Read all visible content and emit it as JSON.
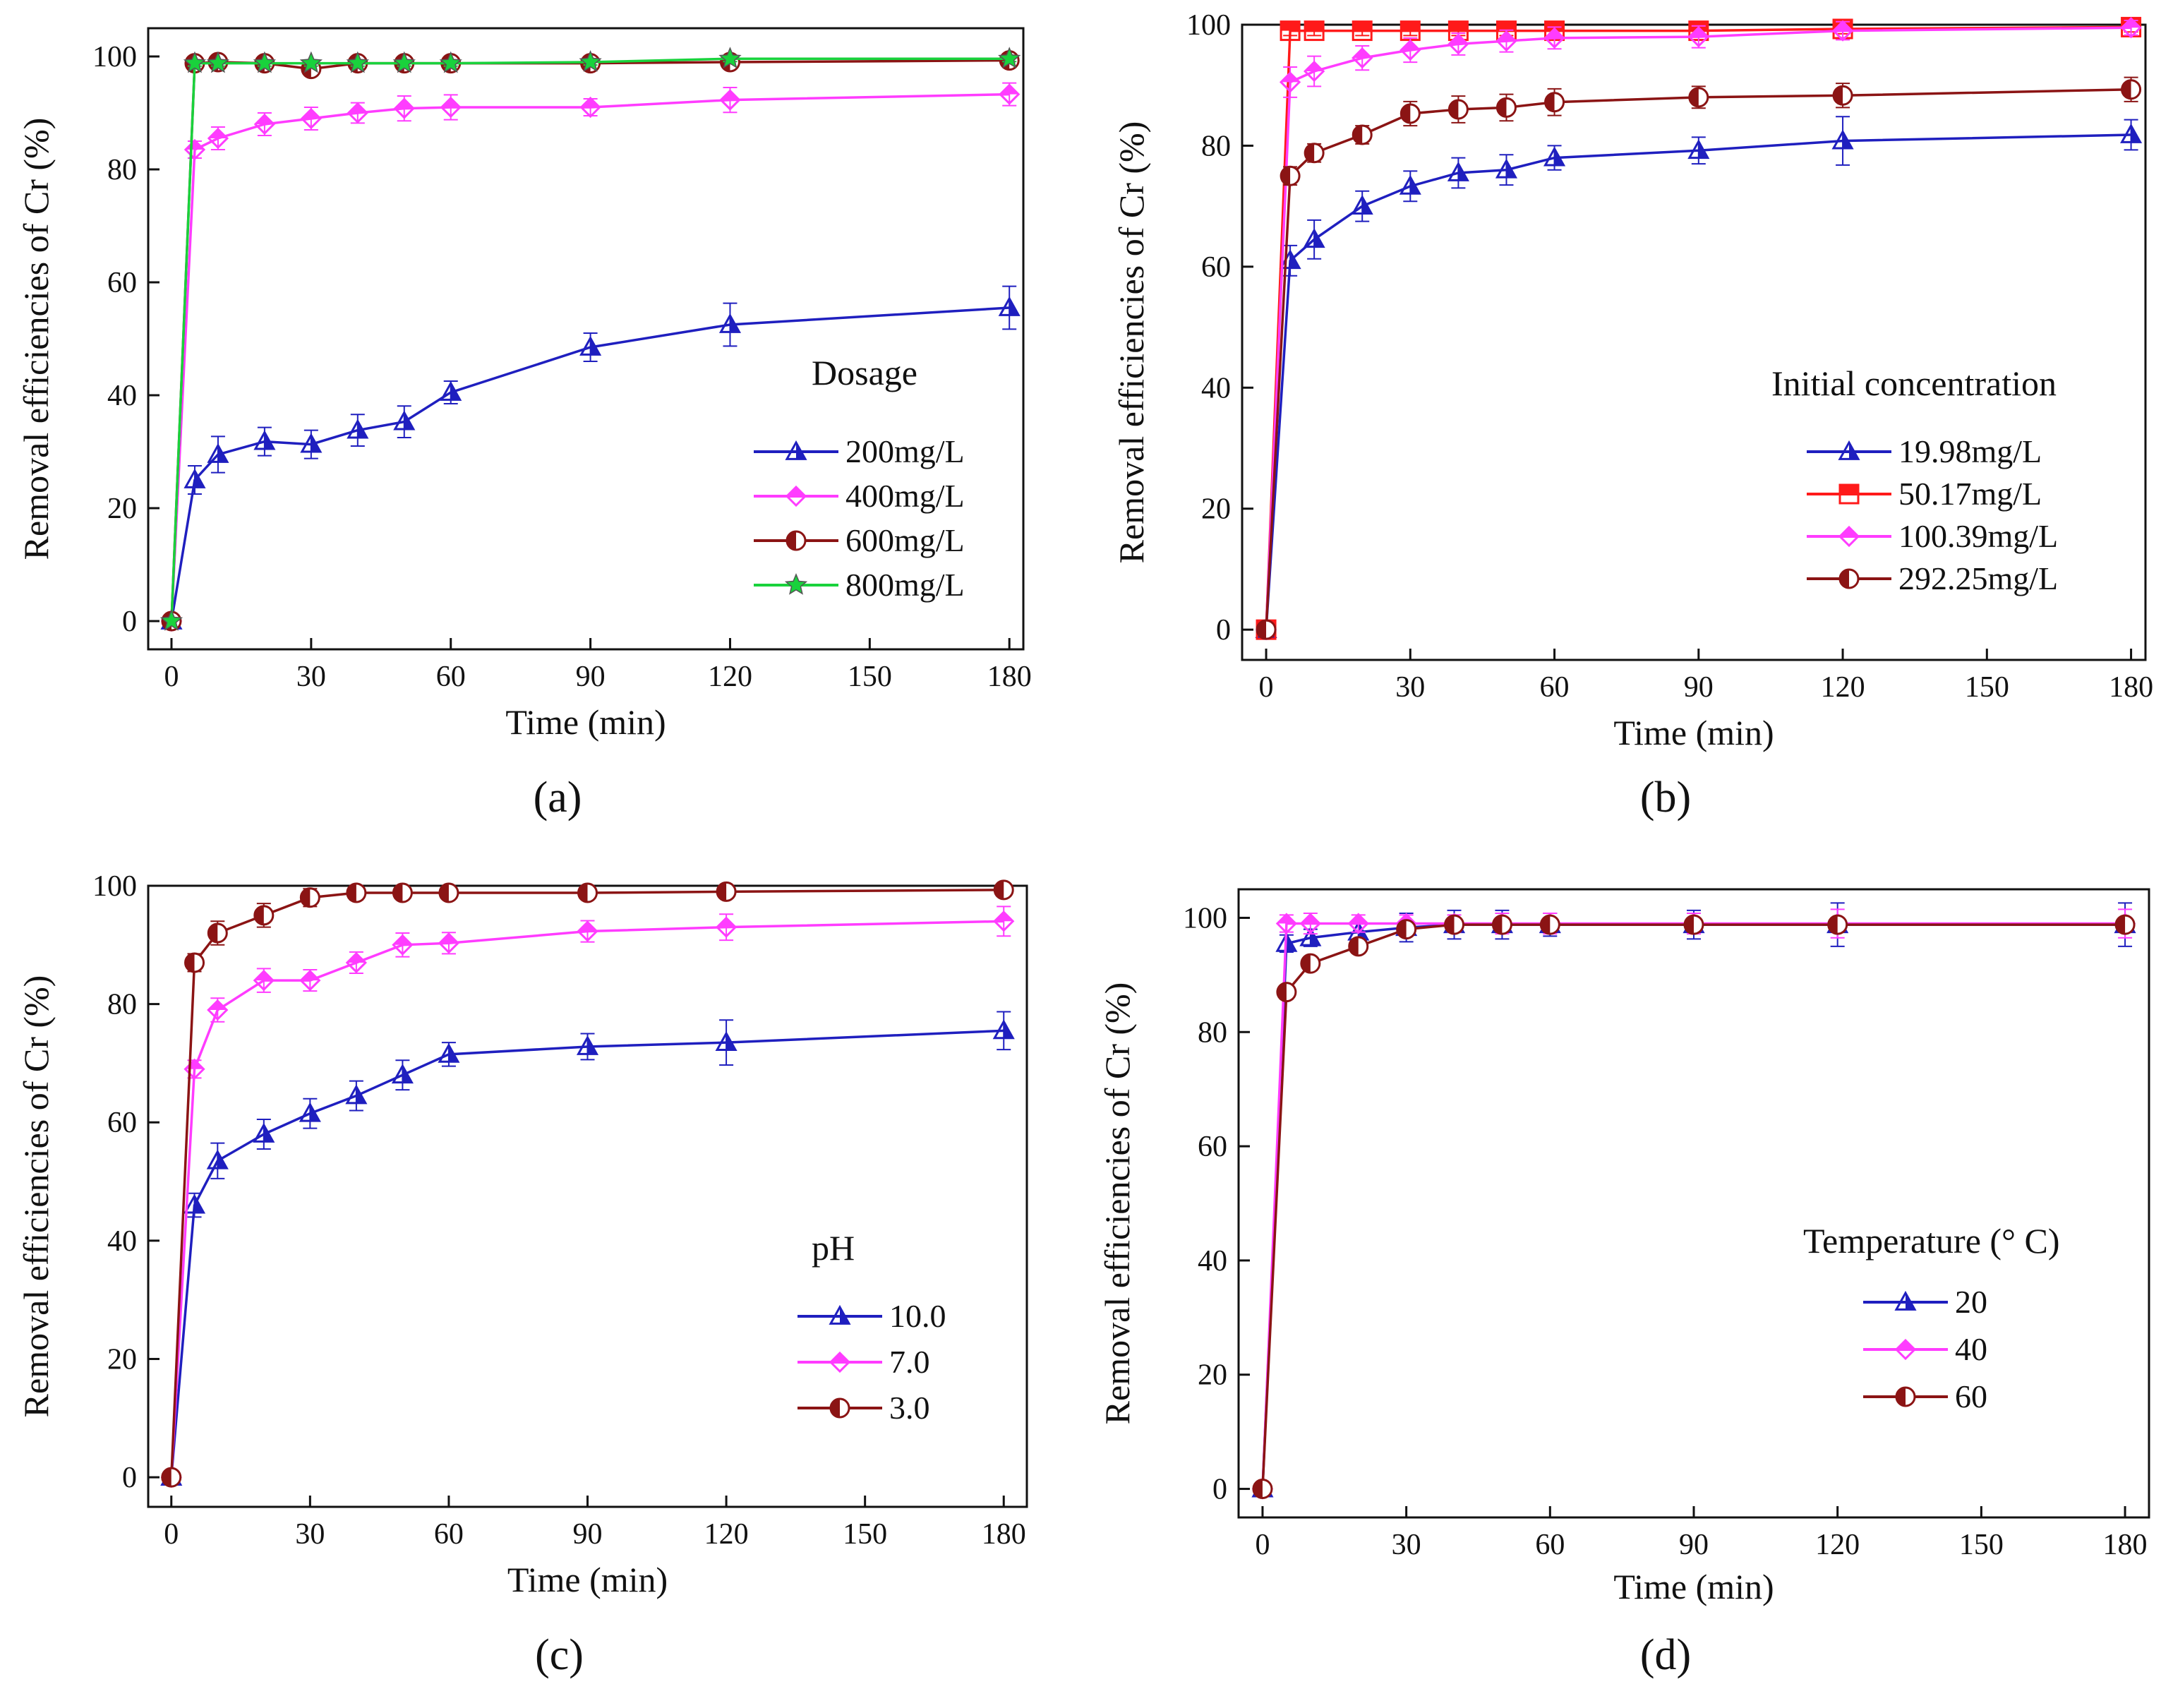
{
  "chart_data": [
    {
      "panel_label": "(a)",
      "type": "line",
      "xlabel": "Time (min)",
      "ylabel": "Removal efficiencies of  Cr (%)",
      "xlim": [
        -5,
        183
      ],
      "ylim": [
        -5,
        105
      ],
      "xticks": [
        0,
        30,
        60,
        90,
        120,
        150,
        180
      ],
      "yticks": [
        0,
        20,
        40,
        60,
        80,
        100
      ],
      "legend_title": "Dosage",
      "legend_position": "lower-right",
      "grid": false,
      "series": [
        {
          "name": "200mg/L",
          "color": "#1f1fbf",
          "marker": "triangle",
          "x": [
            0,
            5,
            10,
            20,
            30,
            40,
            50,
            60,
            90,
            120,
            180
          ],
          "y": [
            0,
            25,
            29.5,
            31.8,
            31.3,
            33.8,
            35.3,
            40.5,
            48.5,
            52.5,
            55.5
          ],
          "err": [
            0,
            2.5,
            3.2,
            2.5,
            2.5,
            2.8,
            2.8,
            2,
            2.5,
            3.8,
            3.8
          ]
        },
        {
          "name": "400mg/L",
          "color": "#ff3cff",
          "marker": "diamond",
          "x": [
            0,
            5,
            10,
            20,
            30,
            40,
            50,
            60,
            90,
            120,
            180
          ],
          "y": [
            0,
            83.5,
            85.5,
            88,
            89,
            90,
            90.8,
            91,
            91,
            92.3,
            93.3
          ],
          "err": [
            0,
            1.5,
            2,
            2,
            2,
            1.8,
            2.2,
            2.2,
            1.5,
            2.2,
            2
          ]
        },
        {
          "name": "600mg/L",
          "color": "#8b1414",
          "marker": "half-circle",
          "x": [
            0,
            5,
            10,
            20,
            30,
            40,
            50,
            60,
            90,
            120,
            180
          ],
          "y": [
            0,
            98.8,
            99,
            98.8,
            97.8,
            98.8,
            98.8,
            98.8,
            98.8,
            99,
            99.3
          ],
          "err": [
            0,
            0.5,
            0.5,
            0.5,
            0.5,
            0.5,
            0.5,
            0.5,
            0.5,
            0.5,
            0.5
          ]
        },
        {
          "name": "800mg/L",
          "color": "#19d23c",
          "marker": "star",
          "x": [
            0,
            5,
            10,
            20,
            30,
            40,
            50,
            60,
            90,
            120,
            180
          ],
          "y": [
            0,
            98.8,
            98.8,
            98.8,
            98.8,
            98.8,
            98.8,
            98.8,
            99,
            99.6,
            99.6
          ],
          "err": [
            0,
            0.5,
            0.5,
            0.5,
            0.5,
            0.5,
            0.5,
            0.5,
            0.5,
            0.5,
            0.5
          ]
        }
      ]
    },
    {
      "panel_label": "(b)",
      "type": "line",
      "xlabel": "Time (min)",
      "ylabel": "Removal efficiencies of  Cr (%)",
      "xlim": [
        -5,
        183
      ],
      "ylim": [
        -5,
        100
      ],
      "xticks": [
        0,
        30,
        60,
        90,
        120,
        150,
        180
      ],
      "yticks": [
        0,
        20,
        40,
        60,
        80,
        100
      ],
      "legend_title": "Initial concentration",
      "legend_position": "lower-right",
      "grid": false,
      "series": [
        {
          "name": "19.98mg/L",
          "color": "#1f1fbf",
          "marker": "triangle",
          "x": [
            0,
            5,
            10,
            20,
            30,
            40,
            50,
            60,
            90,
            120,
            180
          ],
          "y": [
            0,
            61,
            64.5,
            70,
            73.3,
            75.5,
            76,
            78,
            79.2,
            80.8,
            81.8
          ],
          "err": [
            0,
            2.5,
            3.2,
            2.5,
            2.5,
            2.5,
            2.5,
            2,
            2.2,
            4,
            2.5
          ]
        },
        {
          "name": "50.17mg/L",
          "color": "#ff1a1a",
          "marker": "square",
          "x": [
            0,
            5,
            10,
            20,
            30,
            40,
            50,
            60,
            90,
            120,
            180
          ],
          "y": [
            0,
            99,
            99,
            99,
            99,
            99,
            99,
            99,
            99,
            99.3,
            99.6
          ],
          "err": [
            0,
            0.8,
            0.8,
            0.8,
            0.8,
            0.8,
            0.8,
            0.8,
            0.8,
            0.8,
            0.8
          ]
        },
        {
          "name": "100.39mg/L",
          "color": "#ff3cff",
          "marker": "diamond",
          "x": [
            0,
            5,
            10,
            20,
            30,
            40,
            50,
            60,
            90,
            120,
            180
          ],
          "y": [
            0,
            90.5,
            92.3,
            94.5,
            95.8,
            96.8,
            97.3,
            97.8,
            98,
            99,
            99.5
          ],
          "err": [
            0,
            2.5,
            2.5,
            2,
            2,
            1.8,
            1.8,
            1.8,
            1.8,
            1.5,
            1.2
          ]
        },
        {
          "name": "292.25mg/L",
          "color": "#8b1414",
          "marker": "half-circle",
          "x": [
            0,
            5,
            10,
            20,
            30,
            40,
            50,
            60,
            90,
            120,
            180
          ],
          "y": [
            0,
            75,
            78.8,
            81.8,
            85.3,
            86,
            86.3,
            87.2,
            88,
            88.3,
            89.3
          ],
          "err": [
            0,
            1.5,
            1.5,
            1.5,
            2,
            2.2,
            2.2,
            2.2,
            1.8,
            2,
            2
          ]
        }
      ]
    },
    {
      "panel_label": "(c)",
      "type": "line",
      "xlabel": "Time (min)",
      "ylabel": "Removal efficiencies of  Cr (%)",
      "xlim": [
        -5,
        185
      ],
      "ylim": [
        -5,
        100
      ],
      "xticks": [
        0,
        30,
        60,
        90,
        120,
        150,
        180
      ],
      "yticks": [
        0,
        20,
        40,
        60,
        80,
        100
      ],
      "legend_title": "pH",
      "legend_position": "lower-right",
      "grid": false,
      "series": [
        {
          "name": "10.0",
          "color": "#1f1fbf",
          "marker": "triangle",
          "x": [
            0,
            5,
            10,
            20,
            30,
            40,
            50,
            60,
            90,
            120,
            180
          ],
          "y": [
            0,
            46,
            53.5,
            58,
            61.5,
            64.5,
            68,
            71.5,
            72.8,
            73.5,
            75.5
          ],
          "err": [
            0,
            2,
            3,
            2.5,
            2.5,
            2.5,
            2.5,
            2,
            2.2,
            3.8,
            3.2
          ]
        },
        {
          "name": "7.0",
          "color": "#ff3cff",
          "marker": "diamond",
          "x": [
            0,
            5,
            10,
            20,
            30,
            40,
            50,
            60,
            90,
            120,
            180
          ],
          "y": [
            0,
            69,
            79,
            84,
            84,
            87,
            90,
            90.3,
            92.3,
            93,
            94
          ],
          "err": [
            0,
            1.5,
            2,
            2,
            1.8,
            1.8,
            2,
            1.8,
            1.8,
            2.2,
            2.5
          ]
        },
        {
          "name": "3.0",
          "color": "#8b1414",
          "marker": "half-circle",
          "x": [
            0,
            5,
            10,
            20,
            30,
            40,
            50,
            60,
            90,
            120,
            180
          ],
          "y": [
            0,
            87,
            92,
            95,
            98,
            98.8,
            98.8,
            98.8,
            98.8,
            99,
            99.3
          ],
          "err": [
            0,
            1.5,
            2,
            2,
            1.5,
            1.2,
            1,
            1,
            1,
            0.8,
            0.8
          ]
        }
      ]
    },
    {
      "panel_label": "(d)",
      "type": "line",
      "xlabel": "Time (min)",
      "ylabel": "Removal efficiencies of  Cr (%)",
      "xlim": [
        -5,
        185
      ],
      "ylim": [
        -5,
        105
      ],
      "xticks": [
        0,
        30,
        60,
        90,
        120,
        150,
        180
      ],
      "yticks": [
        0,
        20,
        40,
        60,
        80,
        100
      ],
      "legend_title": "Temperature (° C)",
      "legend_position": "lower-right",
      "grid": false,
      "series": [
        {
          "name": "20",
          "color": "#1f1fbf",
          "marker": "triangle",
          "x": [
            0,
            5,
            10,
            20,
            30,
            40,
            50,
            60,
            90,
            120,
            180
          ],
          "y": [
            0,
            95.5,
            96.5,
            97.5,
            98.3,
            98.8,
            98.8,
            98.8,
            98.8,
            98.8,
            98.8
          ],
          "err": [
            0,
            1.5,
            1.5,
            1.5,
            2.5,
            2.5,
            2.5,
            2,
            2.5,
            3.8,
            3.8
          ]
        },
        {
          "name": "40",
          "color": "#ff3cff",
          "marker": "diamond",
          "x": [
            0,
            5,
            10,
            20,
            30,
            40,
            50,
            60,
            90,
            120,
            180
          ],
          "y": [
            0,
            99,
            99,
            99,
            99,
            99,
            99,
            99,
            99,
            99,
            99
          ],
          "err": [
            0,
            1.5,
            1.8,
            1.5,
            1.5,
            1.5,
            1.8,
            1.8,
            1.8,
            2.5,
            2.5
          ]
        },
        {
          "name": "60",
          "color": "#8b1414",
          "marker": "half-circle",
          "x": [
            0,
            5,
            10,
            20,
            30,
            40,
            50,
            60,
            90,
            120,
            180
          ],
          "y": [
            0,
            87,
            92,
            95,
            98,
            98.8,
            98.8,
            98.8,
            98.8,
            98.8,
            98.8
          ],
          "err": [
            0,
            1.2,
            1.2,
            1.2,
            1.2,
            1.2,
            1.2,
            1.2,
            1.2,
            1.2,
            1.2
          ]
        }
      ]
    }
  ]
}
